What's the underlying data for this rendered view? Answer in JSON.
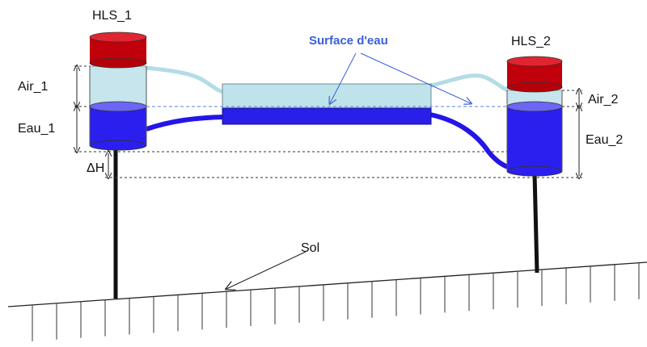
{
  "labels": {
    "sensor_1": "HLS_1",
    "sensor_2": "HLS_2",
    "water_surface": "Surface d'eau",
    "air_1": "Air_1",
    "water_1": "Eau_1",
    "delta_h": "ΔH",
    "air_2": "Air_2",
    "water_2": "Eau_2",
    "ground": "Sol"
  },
  "colors": {
    "cap_red": "#c0000b",
    "water_blue": "#2b1ff0",
    "air_cyan": "#bfe3ea",
    "tube_water": "#2415e8",
    "tube_air": "#b3dde4",
    "annotation_blue": "#3a5fd8"
  }
}
